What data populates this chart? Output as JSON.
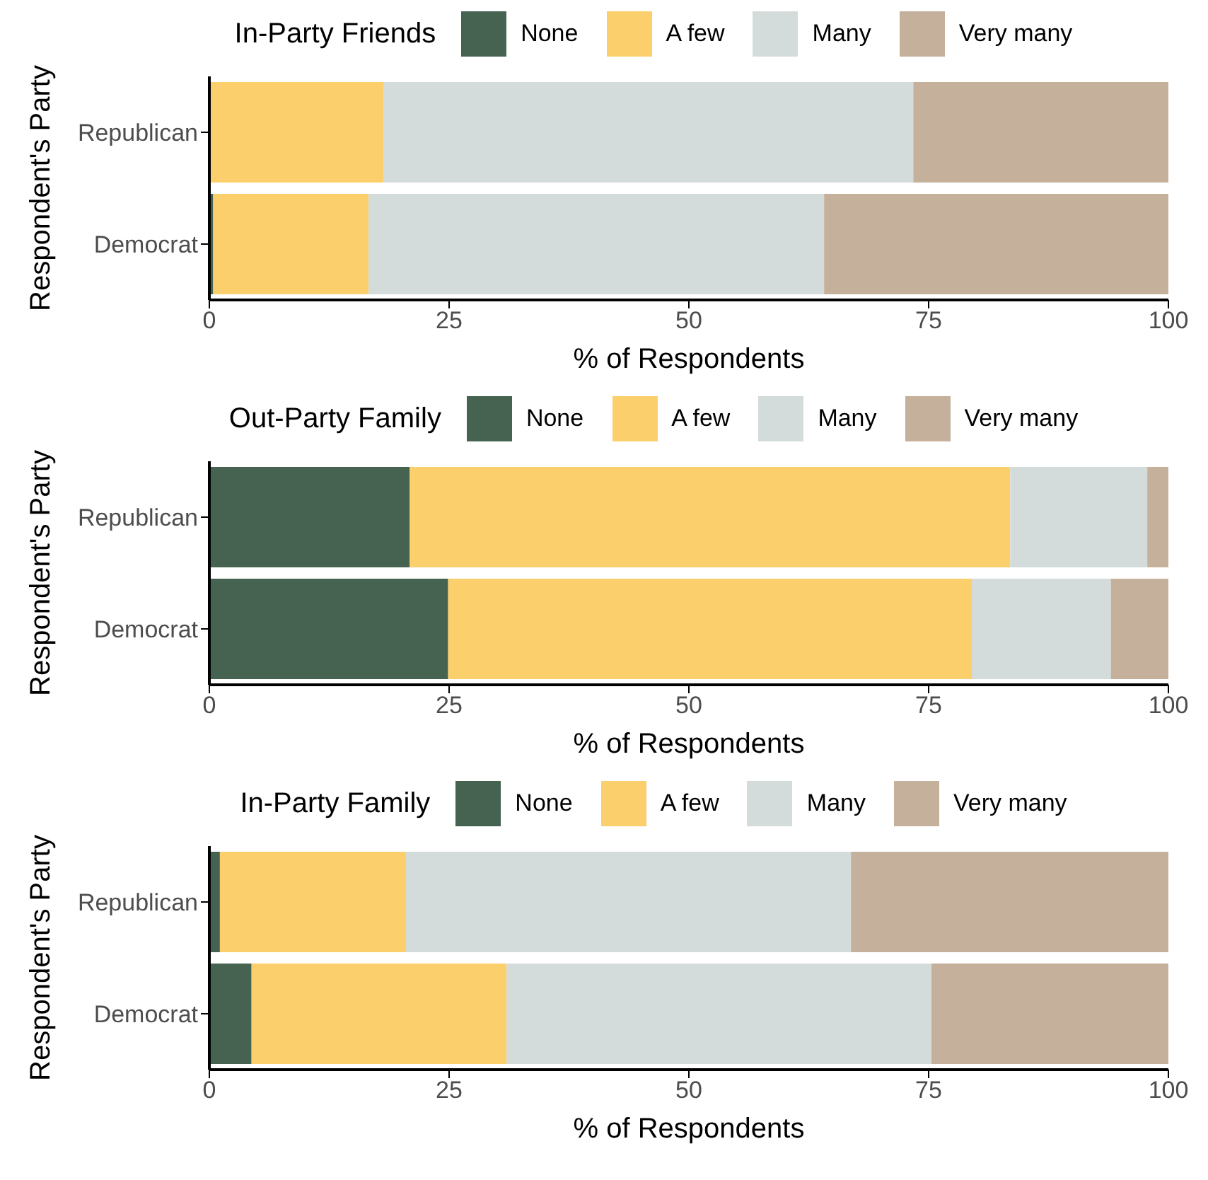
{
  "chart_data": [
    {
      "type": "bar",
      "orientation": "horizontal",
      "stacked": true,
      "legend": "top",
      "legend_title": "In-Party Friends",
      "xlabel": "% of Respondents",
      "ylabel": "Respondent's Party",
      "categories": [
        "Republican",
        "Democrat"
      ],
      "xlim": [
        0,
        100
      ],
      "xticks": [
        0,
        25,
        50,
        75,
        100
      ],
      "grid": false,
      "series": [
        {
          "name": "None",
          "color": "#466352",
          "values": [
            0,
            0.4
          ]
        },
        {
          "name": "A few",
          "color": "#fbcf6c",
          "values": [
            18.2,
            16.2
          ]
        },
        {
          "name": "Many",
          "color": "#d3dcda",
          "values": [
            55.2,
            47.5
          ]
        },
        {
          "name": "Very many",
          "color": "#c5b09b",
          "values": [
            26.6,
            35.9
          ]
        }
      ]
    },
    {
      "type": "bar",
      "orientation": "horizontal",
      "stacked": true,
      "legend": "top",
      "legend_title": "Out-Party Family",
      "xlabel": "% of Respondents",
      "ylabel": "Respondent's Party",
      "categories": [
        "Republican",
        "Democrat"
      ],
      "xlim": [
        0,
        100
      ],
      "xticks": [
        0,
        25,
        50,
        75,
        100
      ],
      "grid": false,
      "series": [
        {
          "name": "None",
          "color": "#466352",
          "values": [
            20.9,
            24.9
          ]
        },
        {
          "name": "A few",
          "color": "#fbcf6c",
          "values": [
            62.6,
            54.6
          ]
        },
        {
          "name": "Many",
          "color": "#d3dcda",
          "values": [
            14.3,
            14.5
          ]
        },
        {
          "name": "Very many",
          "color": "#c5b09b",
          "values": [
            2.2,
            6.0
          ]
        }
      ]
    },
    {
      "type": "bar",
      "orientation": "horizontal",
      "stacked": true,
      "legend": "top",
      "legend_title": "In-Party Family",
      "xlabel": "% of Respondents",
      "ylabel": "Respondent's Party",
      "categories": [
        "Republican",
        "Democrat"
      ],
      "xlim": [
        0,
        100
      ],
      "xticks": [
        0,
        25,
        50,
        75,
        100
      ],
      "grid": false,
      "series": [
        {
          "name": "None",
          "color": "#466352",
          "values": [
            1.1,
            4.4
          ]
        },
        {
          "name": "A few",
          "color": "#fbcf6c",
          "values": [
            19.4,
            26.6
          ]
        },
        {
          "name": "Many",
          "color": "#d3dcda",
          "values": [
            46.4,
            44.3
          ]
        },
        {
          "name": "Very many",
          "color": "#c5b09b",
          "values": [
            33.1,
            24.7
          ]
        }
      ]
    }
  ]
}
